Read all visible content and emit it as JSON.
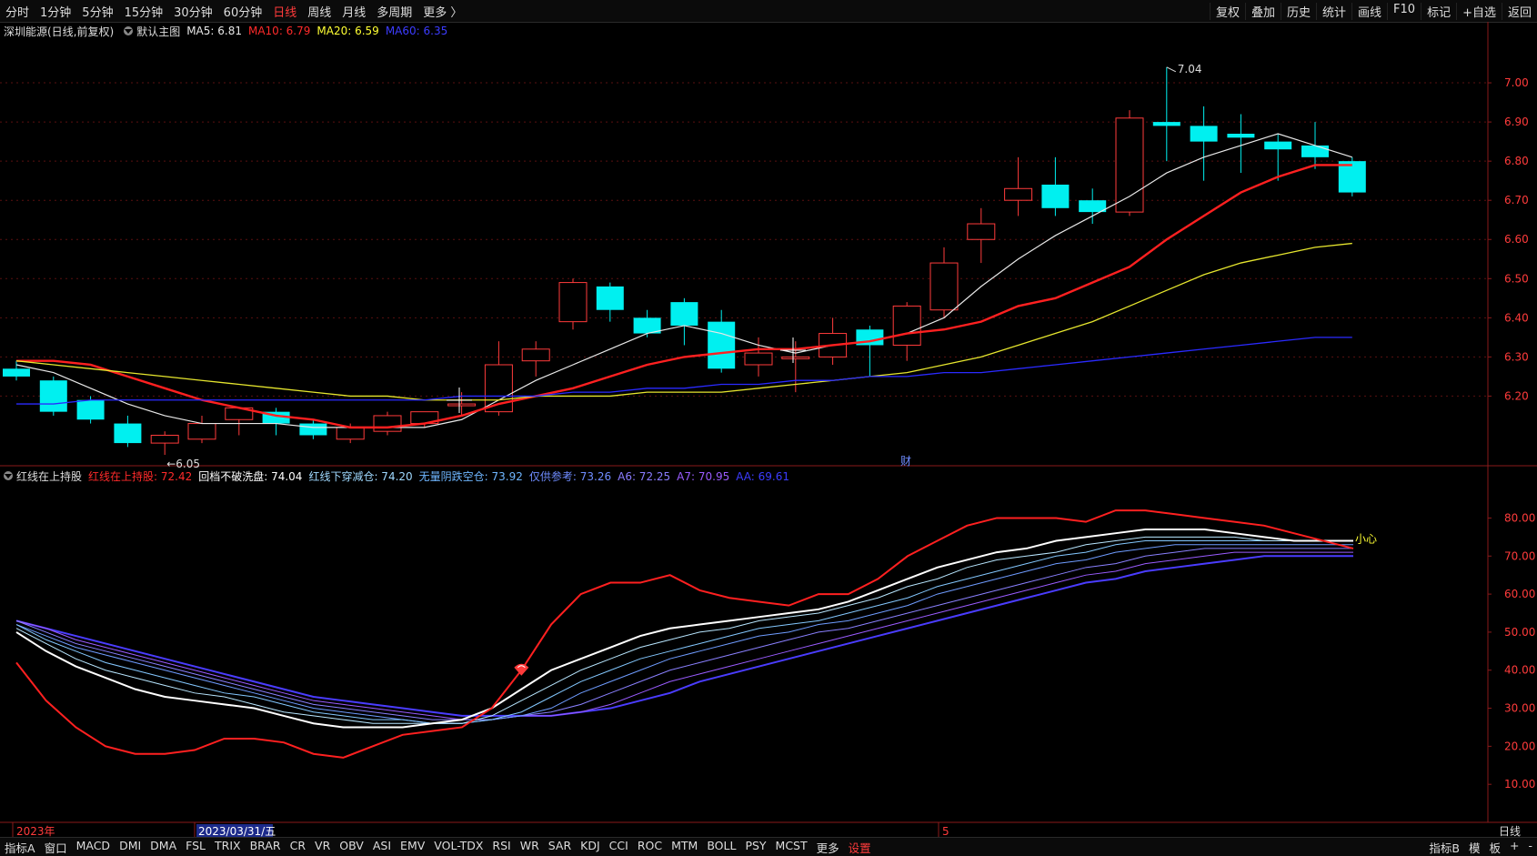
{
  "topbar": {
    "tabs": [
      {
        "label": "分时",
        "active": false
      },
      {
        "label": "1分钟",
        "active": false
      },
      {
        "label": "5分钟",
        "active": false
      },
      {
        "label": "15分钟",
        "active": false
      },
      {
        "label": "30分钟",
        "active": false
      },
      {
        "label": "60分钟",
        "active": false
      },
      {
        "label": "日线",
        "active": true
      },
      {
        "label": "周线",
        "active": false
      },
      {
        "label": "月线",
        "active": false
      },
      {
        "label": "多周期",
        "active": false
      },
      {
        "label": "更多 〉",
        "active": false
      }
    ],
    "right": [
      "复权",
      "叠加",
      "历史",
      "统计",
      "画线",
      "F10",
      "标记",
      "+自选",
      "返回"
    ]
  },
  "legend_main": {
    "stock": "深圳能源(日线,前复权)",
    "main_label": "默认主图",
    "items": [
      {
        "text": "MA5: 6.81",
        "color": "#e8e8e8"
      },
      {
        "text": "MA10: 6.79",
        "color": "#ff2a2a"
      },
      {
        "text": "MA20: 6.59",
        "color": "#ffff33"
      },
      {
        "text": "MA60: 6.35",
        "color": "#3c3cff"
      }
    ]
  },
  "legend_ind": {
    "name": "红线在上持股",
    "items": [
      {
        "text": "红线在上持股: 72.42",
        "color": "#ff2a2a"
      },
      {
        "text": "回档不破洗盘: 74.04",
        "color": "#ffffff"
      },
      {
        "text": "红线下穿减仓: 74.20",
        "color": "#9fd9ff"
      },
      {
        "text": "无量阴跌空仓: 73.92",
        "color": "#6fb6ff"
      },
      {
        "text": "仅供参考: 73.26",
        "color": "#6f8cff"
      },
      {
        "text": "A6: 72.25",
        "color": "#8a7cff"
      },
      {
        "text": "A7: 70.95",
        "color": "#9a5cff"
      },
      {
        "text": "AA: 69.61",
        "color": "#3c3cff"
      }
    ]
  },
  "annotations": {
    "high": "7.04",
    "low": "←6.05",
    "fin": "财",
    "caution": "小心"
  },
  "axis": {
    "price_ticks": [
      "7.00",
      "6.90",
      "6.80",
      "6.70",
      "6.60",
      "6.50",
      "6.40",
      "6.30",
      "6.20"
    ],
    "ind_ticks": [
      "80.00",
      "70.00",
      "60.00",
      "50.00",
      "40.00",
      "30.00",
      "20.00",
      "10.00"
    ],
    "dates": [
      {
        "text": "2023年",
        "color": "#ff3b3b"
      },
      {
        "text": "2023/03/31/五",
        "color": "#ffffff"
      },
      {
        "text": "5",
        "color": "#ff3b3b"
      }
    ],
    "period": "日线"
  },
  "colors": {
    "up": "#ff3b3b",
    "down": "#00f0f0",
    "grid": "#5a1010",
    "ma5": "#e8e8e8",
    "ma10": "#ff2020",
    "ma20": "#e6e62e",
    "ma60": "#2a2aff"
  },
  "bottombar": {
    "tabs": [
      "指标A",
      "窗口",
      "MACD",
      "DMI",
      "DMA",
      "FSL",
      "TRIX",
      "BRAR",
      "CR",
      "VR",
      "OBV",
      "ASI",
      "EMV",
      "VOL-TDX",
      "RSI",
      "WR",
      "SAR",
      "KDJ",
      "CCI",
      "ROC",
      "MTM",
      "BOLL",
      "PSY",
      "MCST",
      "更多",
      "设置"
    ],
    "right": [
      "指标B",
      "模",
      "板",
      "+",
      "-"
    ]
  },
  "chart_data": [
    {
      "type": "candlestick",
      "title": "",
      "ylim": [
        6.05,
        7.1
      ],
      "ma": {
        "MA5": [
          6.28,
          6.26,
          6.22,
          6.18,
          6.15,
          6.13,
          6.13,
          6.13,
          6.12,
          6.12,
          6.12,
          6.12,
          6.14,
          6.19,
          6.24,
          6.28,
          6.32,
          6.36,
          6.38,
          6.36,
          6.33,
          6.31,
          6.33,
          6.34,
          6.36,
          6.4,
          6.48,
          6.55,
          6.61,
          6.66,
          6.71,
          6.77,
          6.81,
          6.84,
          6.87,
          6.84,
          6.81
        ],
        "MA10": [
          6.29,
          6.29,
          6.28,
          6.25,
          6.22,
          6.19,
          6.17,
          6.15,
          6.14,
          6.12,
          6.12,
          6.13,
          6.15,
          6.18,
          6.2,
          6.22,
          6.25,
          6.28,
          6.3,
          6.31,
          6.32,
          6.32,
          6.33,
          6.34,
          6.36,
          6.37,
          6.39,
          6.43,
          6.45,
          6.49,
          6.53,
          6.6,
          6.66,
          6.72,
          6.76,
          6.79,
          6.79
        ],
        "MA20": [
          6.29,
          6.28,
          6.27,
          6.26,
          6.25,
          6.24,
          6.23,
          6.22,
          6.21,
          6.2,
          6.2,
          6.19,
          6.19,
          6.19,
          6.2,
          6.2,
          6.2,
          6.21,
          6.21,
          6.21,
          6.22,
          6.23,
          6.24,
          6.25,
          6.26,
          6.28,
          6.3,
          6.33,
          6.36,
          6.39,
          6.43,
          6.47,
          6.51,
          6.54,
          6.56,
          6.58,
          6.59
        ],
        "MA60": [
          6.18,
          6.18,
          6.19,
          6.19,
          6.19,
          6.19,
          6.19,
          6.19,
          6.19,
          6.19,
          6.19,
          6.19,
          6.2,
          6.2,
          6.2,
          6.21,
          6.21,
          6.22,
          6.22,
          6.23,
          6.23,
          6.24,
          6.24,
          6.25,
          6.25,
          6.26,
          6.26,
          6.27,
          6.28,
          6.29,
          6.3,
          6.31,
          6.32,
          6.33,
          6.34,
          6.35,
          6.35
        ]
      },
      "candles": [
        {
          "o": 6.27,
          "h": 6.29,
          "l": 6.24,
          "c": 6.25
        },
        {
          "o": 6.24,
          "h": 6.25,
          "l": 6.15,
          "c": 6.16
        },
        {
          "o": 6.19,
          "h": 6.2,
          "l": 6.13,
          "c": 6.14
        },
        {
          "o": 6.13,
          "h": 6.15,
          "l": 6.07,
          "c": 6.08
        },
        {
          "o": 6.08,
          "h": 6.11,
          "l": 6.05,
          "c": 6.1
        },
        {
          "o": 6.09,
          "h": 6.15,
          "l": 6.08,
          "c": 6.13
        },
        {
          "o": 6.14,
          "h": 6.17,
          "l": 6.1,
          "c": 6.17
        },
        {
          "o": 6.16,
          "h": 6.17,
          "l": 6.1,
          "c": 6.13
        },
        {
          "o": 6.13,
          "h": 6.14,
          "l": 6.09,
          "c": 6.1
        },
        {
          "o": 6.09,
          "h": 6.13,
          "l": 6.08,
          "c": 6.12
        },
        {
          "o": 6.11,
          "h": 6.16,
          "l": 6.1,
          "c": 6.15
        },
        {
          "o": 6.13,
          "h": 6.16,
          "l": 6.12,
          "c": 6.16
        },
        {
          "o": 6.18,
          "h": 6.21,
          "l": 6.15,
          "c": 6.18
        },
        {
          "o": 6.16,
          "h": 6.34,
          "l": 6.15,
          "c": 6.28
        },
        {
          "o": 6.29,
          "h": 6.34,
          "l": 6.25,
          "c": 6.32
        },
        {
          "o": 6.39,
          "h": 6.5,
          "l": 6.37,
          "c": 6.49
        },
        {
          "o": 6.48,
          "h": 6.49,
          "l": 6.39,
          "c": 6.42
        },
        {
          "o": 6.4,
          "h": 6.42,
          "l": 6.35,
          "c": 6.36
        },
        {
          "o": 6.44,
          "h": 6.45,
          "l": 6.33,
          "c": 6.38
        },
        {
          "o": 6.39,
          "h": 6.42,
          "l": 6.26,
          "c": 6.27
        },
        {
          "o": 6.28,
          "h": 6.35,
          "l": 6.25,
          "c": 6.31
        },
        {
          "o": 6.3,
          "h": 6.34,
          "l": 6.21,
          "c": 6.3
        },
        {
          "o": 6.3,
          "h": 6.4,
          "l": 6.28,
          "c": 6.36
        },
        {
          "o": 6.37,
          "h": 6.38,
          "l": 6.25,
          "c": 6.33
        },
        {
          "o": 6.33,
          "h": 6.44,
          "l": 6.29,
          "c": 6.43
        },
        {
          "o": 6.42,
          "h": 6.58,
          "l": 6.4,
          "c": 6.54
        },
        {
          "o": 6.6,
          "h": 6.68,
          "l": 6.54,
          "c": 6.64
        },
        {
          "o": 6.7,
          "h": 6.81,
          "l": 6.66,
          "c": 6.73
        },
        {
          "o": 6.74,
          "h": 6.81,
          "l": 6.66,
          "c": 6.68
        },
        {
          "o": 6.7,
          "h": 6.73,
          "l": 6.64,
          "c": 6.67
        },
        {
          "o": 6.67,
          "h": 6.93,
          "l": 6.66,
          "c": 6.91
        },
        {
          "o": 6.9,
          "h": 7.04,
          "l": 6.8,
          "c": 6.89
        },
        {
          "o": 6.89,
          "h": 6.94,
          "l": 6.75,
          "c": 6.85
        },
        {
          "o": 6.87,
          "h": 6.92,
          "l": 6.77,
          "c": 6.86
        },
        {
          "o": 6.85,
          "h": 6.87,
          "l": 6.75,
          "c": 6.83
        },
        {
          "o": 6.84,
          "h": 6.9,
          "l": 6.78,
          "c": 6.81
        },
        {
          "o": 6.8,
          "h": 6.81,
          "l": 6.71,
          "c": 6.72
        }
      ]
    },
    {
      "type": "line",
      "title": "",
      "ylim": [
        0,
        88
      ],
      "series": [
        {
          "name": "红线在上持股",
          "color": "#ff2020",
          "width": 2,
          "values": [
            42,
            32,
            25,
            20,
            18,
            18,
            19,
            22,
            22,
            21,
            18,
            17,
            20,
            23,
            24,
            25,
            30,
            40,
            52,
            60,
            63,
            63,
            65,
            61,
            59,
            58,
            57,
            60,
            60,
            64,
            70,
            74,
            78,
            80,
            80,
            80,
            79,
            82,
            82,
            81,
            80,
            79,
            78,
            76,
            74,
            72
          ]
        },
        {
          "name": "回档不破洗盘",
          "color": "#ffffff",
          "width": 2,
          "values": [
            50,
            45,
            41,
            38,
            35,
            33,
            32,
            31,
            30,
            28,
            26,
            25,
            25,
            25,
            26,
            27,
            30,
            35,
            40,
            43,
            46,
            49,
            51,
            52,
            53,
            54,
            55,
            56,
            58,
            61,
            64,
            67,
            69,
            71,
            72,
            74,
            75,
            76,
            77,
            77,
            77,
            76,
            75,
            74,
            74,
            74
          ]
        },
        {
          "name": "红线下穿减仓",
          "color": "#b8e6ff",
          "width": 1,
          "values": [
            51,
            47,
            43,
            40,
            38,
            36,
            34,
            33,
            31,
            29,
            28,
            27,
            26,
            26,
            26,
            26,
            28,
            32,
            36,
            40,
            43,
            46,
            48,
            50,
            51,
            53,
            54,
            55,
            57,
            59,
            62,
            64,
            67,
            69,
            70,
            71,
            73,
            74,
            75,
            75,
            75,
            75,
            74,
            74,
            74,
            74
          ]
        },
        {
          "name": "无量阴跌空仓",
          "color": "#84c8ff",
          "width": 1,
          "values": [
            52,
            48,
            45,
            42,
            40,
            38,
            36,
            34,
            33,
            31,
            29,
            28,
            27,
            27,
            26,
            26,
            27,
            29,
            33,
            37,
            40,
            43,
            45,
            47,
            49,
            51,
            52,
            53,
            55,
            57,
            59,
            62,
            64,
            66,
            68,
            70,
            71,
            73,
            74,
            74,
            74,
            74,
            74,
            74,
            74,
            74
          ]
        },
        {
          "name": "仅供参考",
          "color": "#6f9cff",
          "width": 1,
          "values": [
            52,
            49,
            46,
            44,
            42,
            40,
            38,
            36,
            34,
            32,
            30,
            29,
            28,
            27,
            26,
            26,
            27,
            28,
            30,
            34,
            37,
            40,
            43,
            45,
            47,
            49,
            50,
            52,
            53,
            55,
            57,
            60,
            62,
            64,
            66,
            68,
            69,
            71,
            72,
            73,
            73,
            73,
            73,
            73,
            73,
            73
          ]
        },
        {
          "name": "A6",
          "color": "#8a80ff",
          "width": 1,
          "values": [
            53,
            50,
            47,
            45,
            43,
            41,
            39,
            37,
            35,
            33,
            31,
            30,
            29,
            28,
            27,
            27,
            27,
            28,
            29,
            31,
            34,
            37,
            40,
            42,
            44,
            46,
            48,
            50,
            51,
            53,
            55,
            57,
            59,
            61,
            63,
            65,
            67,
            68,
            70,
            71,
            72,
            72,
            72,
            72,
            72,
            72
          ]
        },
        {
          "name": "A7",
          "color": "#9a5cff",
          "width": 1,
          "values": [
            53,
            51,
            48,
            46,
            44,
            42,
            40,
            38,
            36,
            34,
            32,
            31,
            30,
            29,
            28,
            27,
            27,
            28,
            28,
            29,
            31,
            34,
            37,
            39,
            41,
            43,
            45,
            47,
            49,
            51,
            53,
            55,
            57,
            59,
            61,
            63,
            65,
            66,
            68,
            69,
            70,
            71,
            71,
            71,
            71,
            71
          ]
        },
        {
          "name": "AA",
          "color": "#4a3cff",
          "width": 2,
          "values": [
            53,
            51,
            49,
            47,
            45,
            43,
            41,
            39,
            37,
            35,
            33,
            32,
            31,
            30,
            29,
            28,
            28,
            28,
            28,
            29,
            30,
            32,
            34,
            37,
            39,
            41,
            43,
            45,
            47,
            49,
            51,
            53,
            55,
            57,
            59,
            61,
            63,
            64,
            66,
            67,
            68,
            69,
            70,
            70,
            70,
            70
          ]
        }
      ]
    }
  ]
}
